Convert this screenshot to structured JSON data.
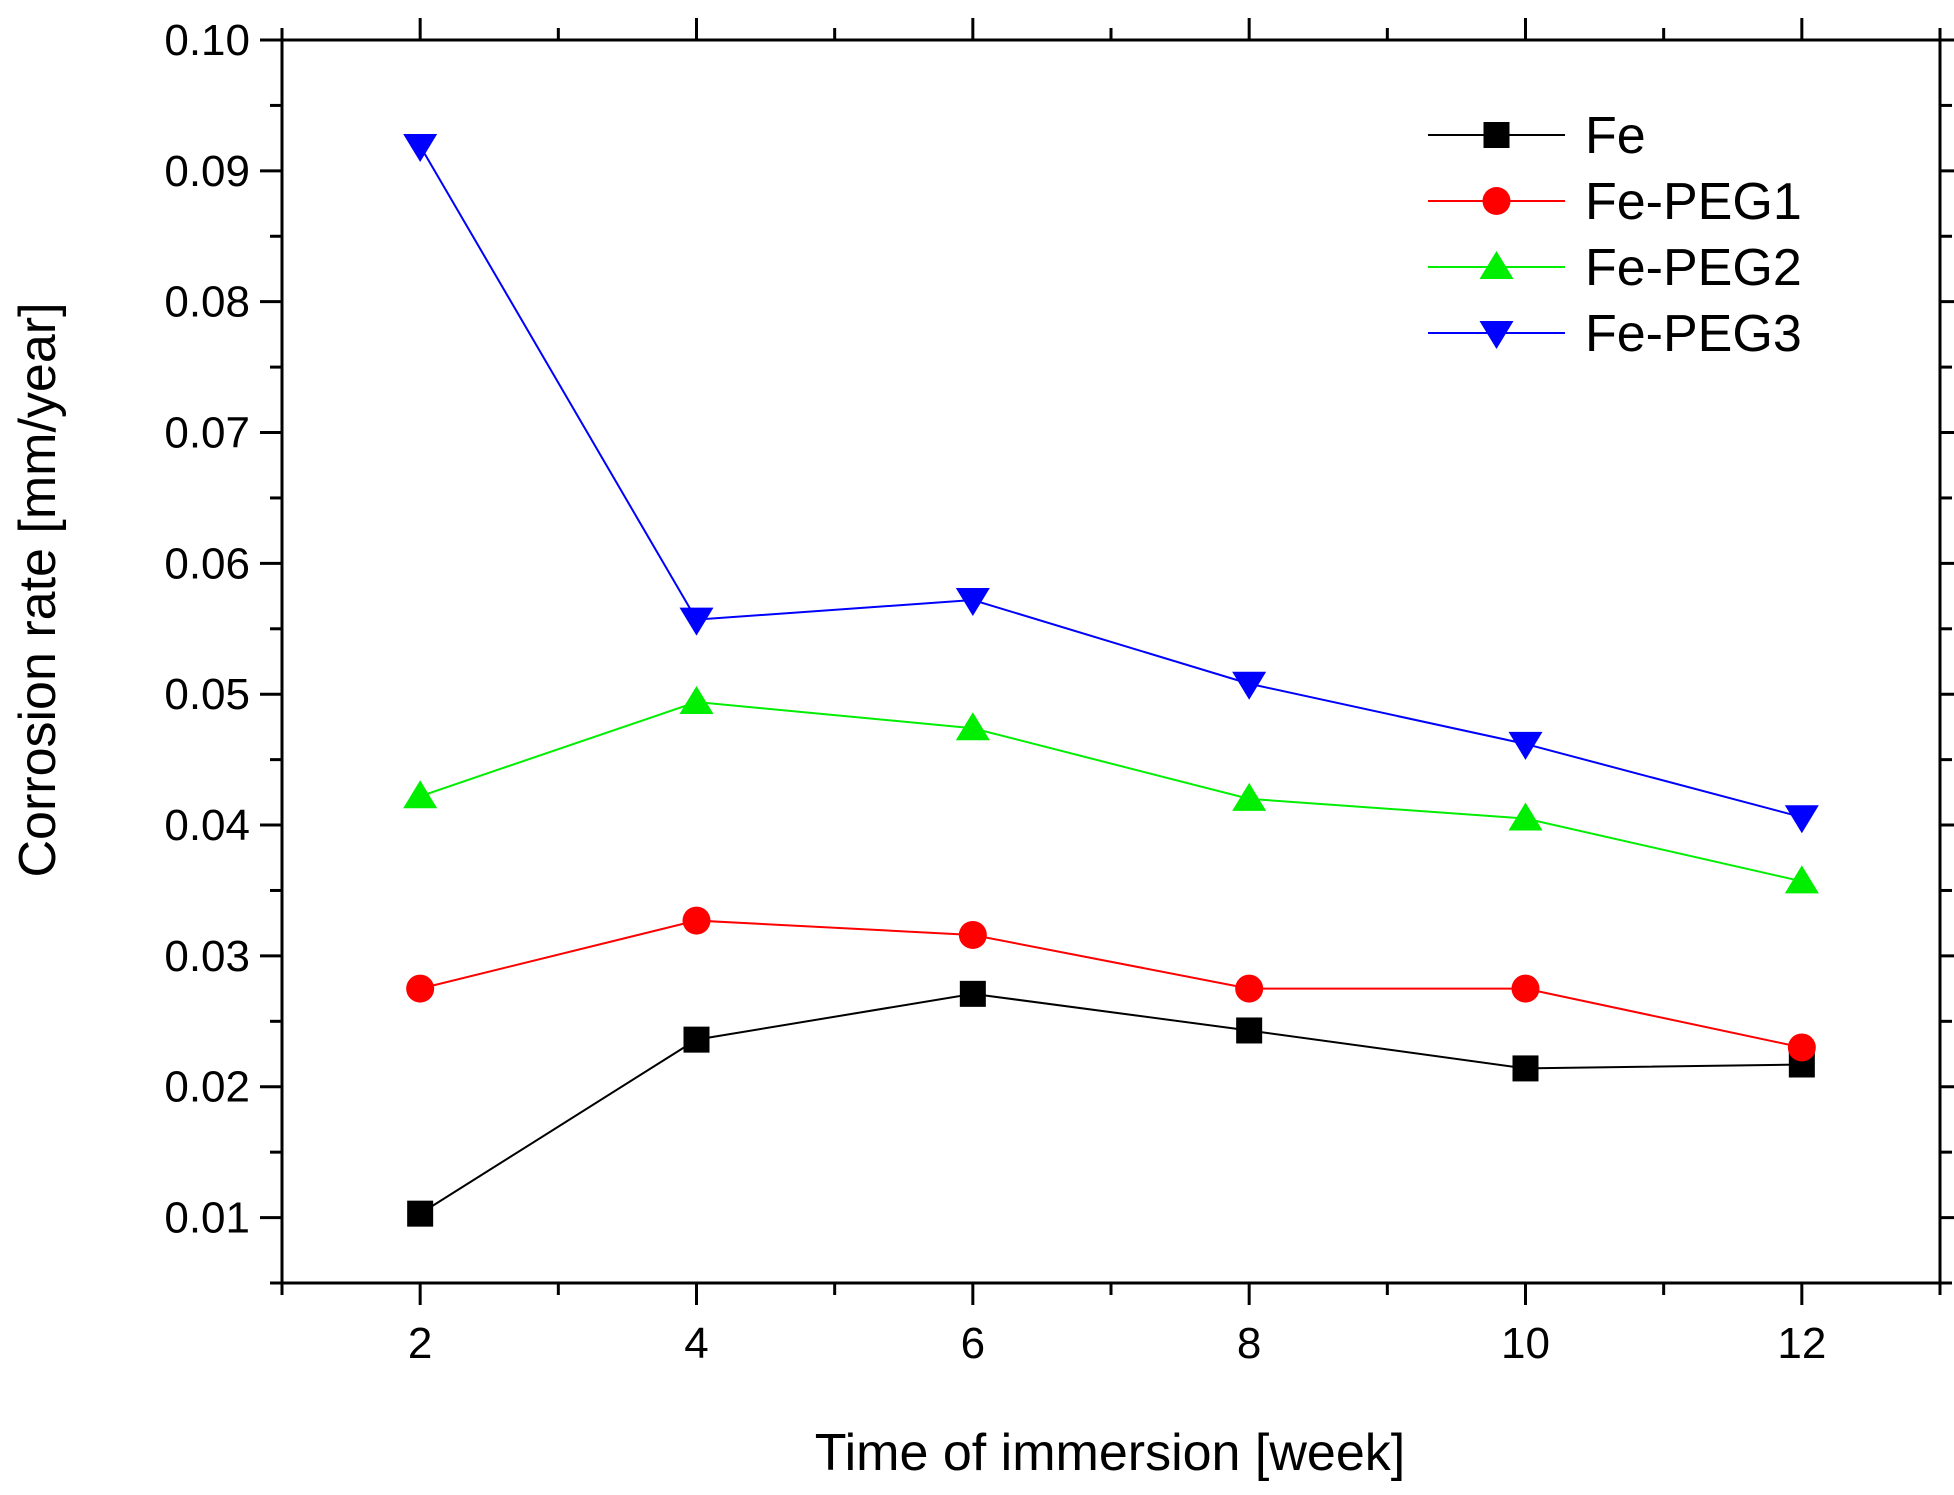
{
  "chart_data": {
    "type": "line",
    "title": "",
    "xlabel": "Time of immersion [week]",
    "ylabel": "Corrosion rate [mm/year]",
    "xlim": [
      1,
      13
    ],
    "ylim": [
      0.005,
      0.1
    ],
    "x_ticks": [
      2,
      4,
      6,
      8,
      10,
      12
    ],
    "y_ticks": [
      "0.01",
      "0.02",
      "0.03",
      "0.04",
      "0.05",
      "0.06",
      "0.07",
      "0.08",
      "0.09",
      "0.10"
    ],
    "x": [
      2,
      4,
      6,
      8,
      10,
      12
    ],
    "legend_position": "top-right",
    "grid": false,
    "series": [
      {
        "name": "Fe",
        "color": "#000000",
        "marker": "square",
        "values": [
          0.0103,
          0.0236,
          0.0271,
          0.0243,
          0.0214,
          0.0217
        ]
      },
      {
        "name": "Fe-PEG1",
        "color": "#ff0000",
        "marker": "circle",
        "values": [
          0.0275,
          0.0327,
          0.0316,
          0.0275,
          0.0275,
          0.023
        ]
      },
      {
        "name": "Fe-PEG2",
        "color": "#00ee00",
        "marker": "triangle-up",
        "values": [
          0.0422,
          0.0494,
          0.0474,
          0.042,
          0.0405,
          0.0357
        ]
      },
      {
        "name": "Fe-PEG3",
        "color": "#0000ff",
        "marker": "triangle-down",
        "values": [
          0.0919,
          0.0557,
          0.0572,
          0.0508,
          0.0462,
          0.0406
        ]
      }
    ]
  }
}
